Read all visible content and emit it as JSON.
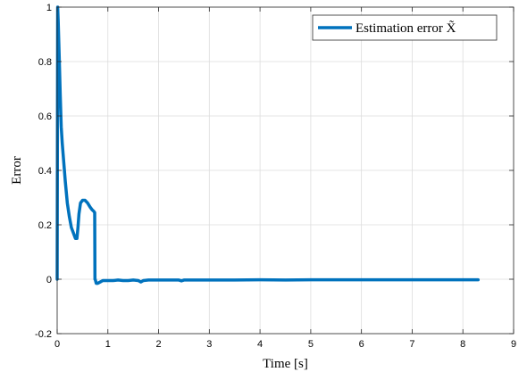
{
  "chart_data": {
    "type": "line",
    "xlabel": "Time [s]",
    "ylabel": "Error",
    "xlim": [
      0,
      9
    ],
    "ylim": [
      -0.2,
      1
    ],
    "xticks": [
      "0",
      "1",
      "2",
      "3",
      "4",
      "5",
      "6",
      "7",
      "8",
      "9"
    ],
    "yticks": [
      "-0.2",
      "0",
      "0.2",
      "0.4",
      "0.6",
      "0.8",
      "1"
    ],
    "grid": true,
    "legend_position": "top-right",
    "series": [
      {
        "name": "Estimation error X̃",
        "color": "#0072bd",
        "x": [
          0,
          0.01,
          0.02,
          0.04,
          0.06,
          0.08,
          0.1,
          0.13,
          0.16,
          0.2,
          0.24,
          0.28,
          0.32,
          0.36,
          0.39,
          0.41,
          0.43,
          0.46,
          0.5,
          0.55,
          0.6,
          0.65,
          0.69,
          0.72,
          0.74,
          0.745,
          0.75,
          0.77,
          0.8,
          0.85,
          0.9,
          0.95,
          1.0,
          1.1,
          1.2,
          1.3,
          1.4,
          1.5,
          1.6,
          1.65,
          1.7,
          1.8,
          2.0,
          2.2,
          2.4,
          2.45,
          2.5,
          2.7,
          3.0,
          3.5,
          4.0,
          4.5,
          5.0,
          5.5,
          6.0,
          6.5,
          7.0,
          7.5,
          8.0,
          8.3
        ],
        "y": [
          0,
          1,
          0.95,
          0.82,
          0.68,
          0.56,
          0.5,
          0.43,
          0.36,
          0.28,
          0.23,
          0.19,
          0.17,
          0.15,
          0.15,
          0.19,
          0.24,
          0.28,
          0.29,
          0.29,
          0.28,
          0.265,
          0.255,
          0.25,
          0.245,
          0.0,
          0.0,
          -0.015,
          -0.015,
          -0.01,
          -0.005,
          -0.005,
          -0.005,
          -0.005,
          -0.003,
          -0.005,
          -0.005,
          -0.003,
          -0.005,
          -0.01,
          -0.005,
          -0.003,
          -0.003,
          -0.003,
          -0.003,
          -0.006,
          -0.003,
          -0.003,
          -0.003,
          -0.003,
          -0.002,
          -0.003,
          -0.002,
          -0.002,
          -0.002,
          -0.002,
          -0.002,
          -0.002,
          -0.002,
          -0.002
        ]
      }
    ]
  }
}
